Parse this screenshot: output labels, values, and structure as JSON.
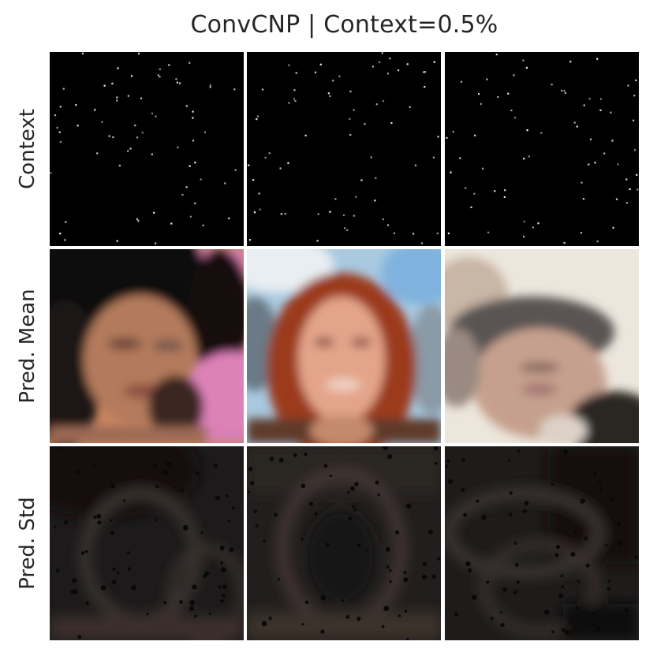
{
  "figure": {
    "title": "ConvCNP | Context=0.5%",
    "row_labels": [
      "Context",
      "Pred. Mean",
      "Pred. Std"
    ],
    "rows": [
      {
        "row": "Context",
        "images": [
          "context-image-1",
          "context-image-2",
          "context-image-3"
        ]
      },
      {
        "row": "Pred. Mean",
        "images": [
          "mean-image-1-dark-haired-woman-pink-background",
          "mean-image-2-red-haired-woman-blue-sky",
          "mean-image-3-person-dark-cap-light-background"
        ]
      },
      {
        "row": "Pred. Std",
        "images": [
          "std-image-1",
          "std-image-2",
          "std-image-3"
        ]
      }
    ],
    "colors": {
      "context_background": "#000000",
      "std_background": "#1a1818",
      "pink_background": "#d77fb2",
      "sky_blue": "#9cc6e6",
      "red_hair": "#a5452a",
      "cream_background": "#ece6dc"
    }
  }
}
